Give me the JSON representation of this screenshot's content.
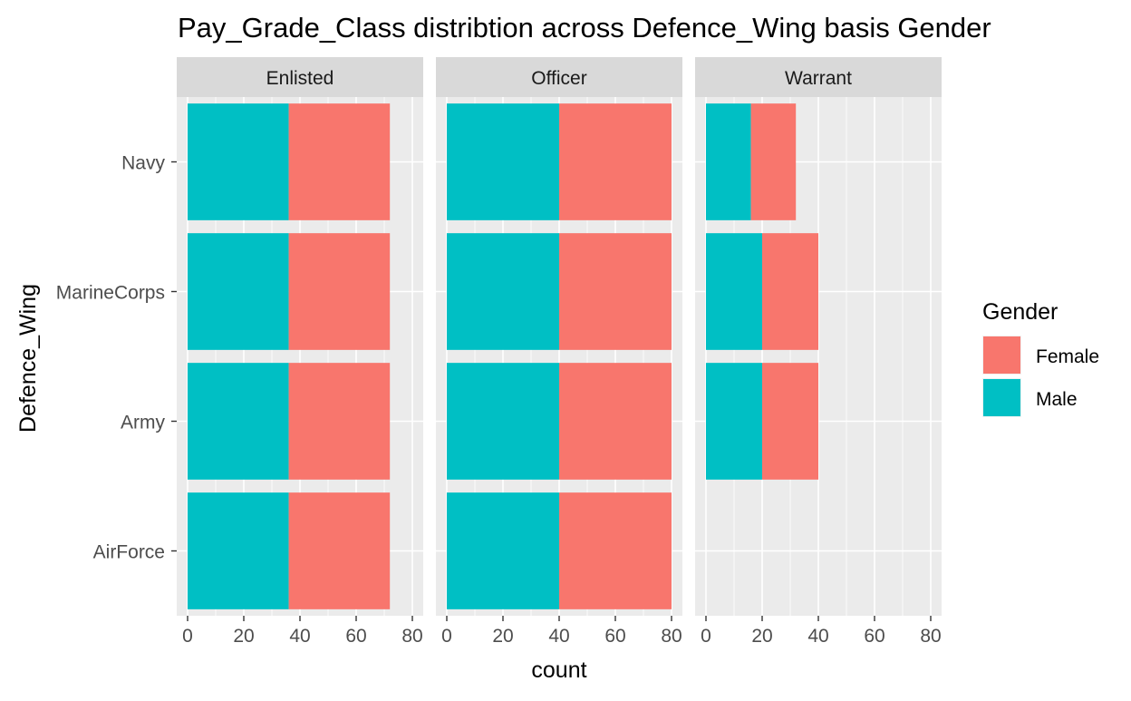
{
  "chart_data": {
    "type": "bar",
    "orientation": "horizontal",
    "stacked": true,
    "title": "Pay_Grade_Class distribtion across Defence_Wing basis Gender",
    "xlabel": "count",
    "ylabel": "Defence_Wing",
    "xlim": [
      0,
      80
    ],
    "x_ticks": [
      0,
      20,
      40,
      60,
      80
    ],
    "categories": [
      "Navy",
      "MarineCorps",
      "Army",
      "AirForce"
    ],
    "grid": true,
    "legend": {
      "title": "Gender",
      "position": "right",
      "entries": [
        {
          "name": "Female",
          "color": "#F8766D"
        },
        {
          "name": "Male",
          "color": "#00BFC4"
        }
      ]
    },
    "facets": [
      {
        "label": "Enlisted",
        "series": [
          {
            "name": "Male",
            "values": [
              36,
              36,
              36,
              36
            ]
          },
          {
            "name": "Female",
            "values": [
              36,
              36,
              36,
              36
            ]
          }
        ]
      },
      {
        "label": "Officer",
        "series": [
          {
            "name": "Male",
            "values": [
              40,
              40,
              40,
              40
            ]
          },
          {
            "name": "Female",
            "values": [
              40,
              40,
              40,
              40
            ]
          }
        ]
      },
      {
        "label": "Warrant",
        "series": [
          {
            "name": "Male",
            "values": [
              16,
              20,
              20,
              0
            ]
          },
          {
            "name": "Female",
            "values": [
              16,
              20,
              20,
              0
            ]
          }
        ]
      }
    ]
  }
}
